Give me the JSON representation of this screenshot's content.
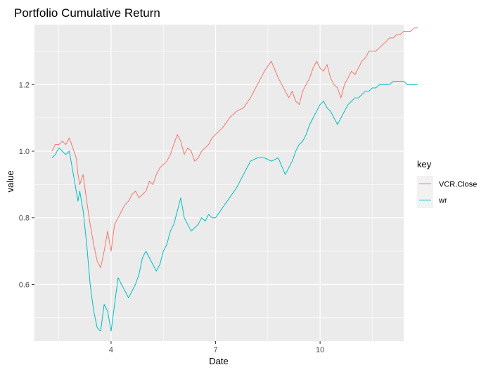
{
  "chart_data": {
    "type": "line",
    "title": "Portfolio Cumulative Return",
    "xlabel": "Date",
    "ylabel": "value",
    "x_ticks": [
      4,
      7,
      10
    ],
    "y_ticks": [
      0.6,
      0.8,
      1.0,
      1.2
    ],
    "y_tick_labels": [
      "0.6",
      "0.8",
      "1.0",
      "1.2"
    ],
    "xlim": [
      1.8,
      12.4
    ],
    "ylim": [
      0.43,
      1.38
    ],
    "grid": true,
    "legend": {
      "title": "key",
      "position": "right"
    },
    "series": [
      {
        "name": "VCR.Close",
        "color": "#F8766D",
        "x": [
          2.3,
          2.4,
          2.5,
          2.6,
          2.7,
          2.8,
          2.9,
          3.0,
          3.05,
          3.1,
          3.2,
          3.3,
          3.4,
          3.5,
          3.6,
          3.7,
          3.8,
          3.9,
          4.0,
          4.1,
          4.2,
          4.3,
          4.4,
          4.5,
          4.6,
          4.7,
          4.8,
          4.9,
          5.0,
          5.1,
          5.2,
          5.3,
          5.4,
          5.5,
          5.6,
          5.7,
          5.8,
          5.9,
          6.0,
          6.1,
          6.2,
          6.3,
          6.4,
          6.5,
          6.6,
          6.7,
          6.8,
          6.9,
          7.0,
          7.2,
          7.4,
          7.6,
          7.8,
          8.0,
          8.2,
          8.4,
          8.6,
          8.8,
          9.0,
          9.1,
          9.2,
          9.3,
          9.4,
          9.5,
          9.6,
          9.7,
          9.8,
          9.9,
          10.0,
          10.1,
          10.2,
          10.3,
          10.4,
          10.5,
          10.6,
          10.7,
          10.8,
          10.9,
          11.0,
          11.1,
          11.2,
          11.3,
          11.4,
          11.5,
          11.6,
          11.7,
          11.8,
          11.9,
          12.0,
          12.1,
          12.2,
          12.3,
          12.4,
          12.5,
          12.6,
          12.7,
          12.8
        ],
        "values": [
          1.0,
          1.02,
          1.02,
          1.03,
          1.02,
          1.04,
          1.01,
          0.98,
          0.93,
          0.9,
          0.93,
          0.85,
          0.78,
          0.72,
          0.67,
          0.65,
          0.7,
          0.76,
          0.7,
          0.78,
          0.8,
          0.82,
          0.84,
          0.85,
          0.87,
          0.88,
          0.86,
          0.87,
          0.88,
          0.91,
          0.9,
          0.93,
          0.95,
          0.96,
          0.97,
          0.99,
          1.02,
          1.05,
          1.03,
          0.99,
          1.01,
          1.0,
          0.97,
          0.98,
          1.0,
          1.01,
          1.02,
          1.04,
          1.05,
          1.07,
          1.1,
          1.12,
          1.13,
          1.16,
          1.2,
          1.24,
          1.27,
          1.22,
          1.18,
          1.16,
          1.18,
          1.15,
          1.14,
          1.18,
          1.2,
          1.22,
          1.25,
          1.27,
          1.25,
          1.24,
          1.26,
          1.22,
          1.2,
          1.19,
          1.16,
          1.2,
          1.22,
          1.24,
          1.23,
          1.25,
          1.27,
          1.28,
          1.3,
          1.3,
          1.3,
          1.31,
          1.32,
          1.33,
          1.34,
          1.34,
          1.35,
          1.35,
          1.36,
          1.36,
          1.36,
          1.37,
          1.37
        ]
      },
      {
        "name": "wr",
        "color": "#00BFC4",
        "x": [
          2.3,
          2.4,
          2.5,
          2.6,
          2.7,
          2.8,
          2.9,
          3.0,
          3.05,
          3.1,
          3.2,
          3.3,
          3.4,
          3.5,
          3.6,
          3.7,
          3.8,
          3.9,
          4.0,
          4.1,
          4.2,
          4.3,
          4.4,
          4.5,
          4.6,
          4.7,
          4.8,
          4.9,
          5.0,
          5.1,
          5.2,
          5.3,
          5.4,
          5.5,
          5.6,
          5.7,
          5.8,
          5.9,
          6.0,
          6.1,
          6.2,
          6.3,
          6.4,
          6.5,
          6.6,
          6.7,
          6.8,
          6.9,
          7.0,
          7.2,
          7.4,
          7.6,
          7.8,
          8.0,
          8.2,
          8.4,
          8.6,
          8.8,
          9.0,
          9.1,
          9.2,
          9.3,
          9.4,
          9.5,
          9.6,
          9.7,
          9.8,
          9.9,
          10.0,
          10.1,
          10.2,
          10.3,
          10.4,
          10.5,
          10.6,
          10.7,
          10.8,
          10.9,
          11.0,
          11.1,
          11.2,
          11.3,
          11.4,
          11.5,
          11.6,
          11.7,
          11.8,
          11.9,
          12.0,
          12.1,
          12.2,
          12.3,
          12.4,
          12.5,
          12.6,
          12.7,
          12.8
        ],
        "values": [
          0.98,
          0.99,
          1.01,
          1.0,
          0.99,
          1.0,
          0.94,
          0.88,
          0.85,
          0.88,
          0.82,
          0.72,
          0.6,
          0.52,
          0.47,
          0.46,
          0.54,
          0.52,
          0.46,
          0.54,
          0.62,
          0.6,
          0.58,
          0.56,
          0.58,
          0.6,
          0.63,
          0.68,
          0.7,
          0.68,
          0.66,
          0.64,
          0.66,
          0.7,
          0.72,
          0.76,
          0.78,
          0.82,
          0.86,
          0.8,
          0.78,
          0.76,
          0.77,
          0.78,
          0.8,
          0.79,
          0.81,
          0.8,
          0.8,
          0.83,
          0.86,
          0.89,
          0.93,
          0.97,
          0.98,
          0.98,
          0.97,
          0.98,
          0.93,
          0.95,
          0.97,
          1.0,
          1.02,
          1.03,
          1.05,
          1.08,
          1.1,
          1.12,
          1.14,
          1.15,
          1.13,
          1.12,
          1.1,
          1.08,
          1.1,
          1.12,
          1.14,
          1.15,
          1.16,
          1.16,
          1.17,
          1.18,
          1.18,
          1.19,
          1.19,
          1.2,
          1.2,
          1.2,
          1.2,
          1.21,
          1.21,
          1.21,
          1.21,
          1.2,
          1.2,
          1.2,
          1.2
        ]
      }
    ]
  }
}
